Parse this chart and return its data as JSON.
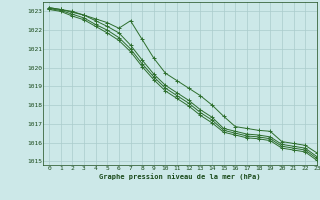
{
  "title": "Graphe pression niveau de la mer (hPa)",
  "bg_color": "#cce8e8",
  "grid_color": "#aacccc",
  "line_color": "#2d6e2d",
  "text_color": "#1a4a1a",
  "xlim": [
    -0.5,
    23
  ],
  "ylim": [
    1014.8,
    1023.5
  ],
  "yticks": [
    1015,
    1016,
    1017,
    1018,
    1019,
    1020,
    1021,
    1022,
    1023
  ],
  "xticks": [
    0,
    1,
    2,
    3,
    4,
    5,
    6,
    7,
    8,
    9,
    10,
    11,
    12,
    13,
    14,
    15,
    16,
    17,
    18,
    19,
    20,
    21,
    22,
    23
  ],
  "series": [
    [
      1023.2,
      1023.1,
      1023.0,
      1022.8,
      1022.6,
      1022.4,
      1022.1,
      1022.5,
      1021.5,
      1020.5,
      1019.7,
      1019.3,
      1018.9,
      1018.5,
      1018.0,
      1017.4,
      1016.85,
      1016.75,
      1016.65,
      1016.6,
      1016.05,
      1015.95,
      1015.85,
      1015.45
    ],
    [
      1023.2,
      1023.1,
      1022.95,
      1022.8,
      1022.5,
      1022.2,
      1021.85,
      1021.2,
      1020.4,
      1019.65,
      1019.05,
      1018.65,
      1018.25,
      1017.75,
      1017.35,
      1016.75,
      1016.6,
      1016.45,
      1016.4,
      1016.3,
      1015.9,
      1015.8,
      1015.7,
      1015.25
    ],
    [
      1023.15,
      1023.05,
      1022.85,
      1022.65,
      1022.3,
      1022.0,
      1021.6,
      1021.0,
      1020.2,
      1019.5,
      1018.9,
      1018.5,
      1018.1,
      1017.6,
      1017.2,
      1016.65,
      1016.5,
      1016.35,
      1016.3,
      1016.2,
      1015.8,
      1015.7,
      1015.6,
      1015.15
    ],
    [
      1023.1,
      1023.0,
      1022.75,
      1022.55,
      1022.2,
      1021.85,
      1021.45,
      1020.85,
      1020.05,
      1019.35,
      1018.75,
      1018.35,
      1017.95,
      1017.45,
      1017.05,
      1016.55,
      1016.4,
      1016.25,
      1016.2,
      1016.1,
      1015.7,
      1015.6,
      1015.5,
      1015.05
    ]
  ]
}
